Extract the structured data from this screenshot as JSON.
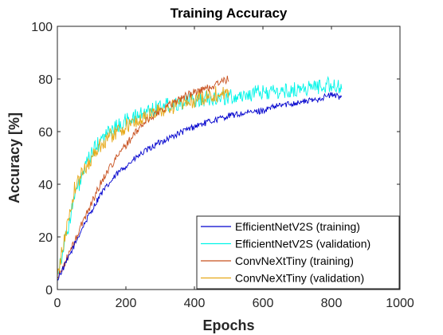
{
  "chart_data": {
    "type": "line",
    "title": "Training Accuracy",
    "xlabel": "Epochs",
    "ylabel": "Accuracy [%]",
    "xlim": [
      0,
      1000
    ],
    "ylim": [
      0,
      100
    ],
    "xticks": [
      0,
      200,
      400,
      600,
      800,
      1000
    ],
    "yticks": [
      0,
      20,
      40,
      60,
      80,
      100
    ],
    "grid": false,
    "legend_position": "bottom-right",
    "series": [
      {
        "name": "EfficientNetV2S (training)",
        "color": "#0000cd",
        "noise": 1.2,
        "x": [
          0,
          25,
          50,
          75,
          100,
          125,
          150,
          175,
          200,
          250,
          300,
          350,
          400,
          450,
          500,
          550,
          600,
          650,
          700,
          750,
          800,
          830
        ],
        "y": [
          4,
          10,
          17,
          24,
          30,
          36,
          40,
          44,
          47,
          52,
          56,
          59,
          62,
          64,
          66,
          67,
          68,
          70,
          71,
          72,
          74,
          73
        ]
      },
      {
        "name": "EfficientNetV2S (validation)",
        "color": "#00f5e8",
        "noise": 3.0,
        "x": [
          0,
          25,
          50,
          75,
          100,
          125,
          150,
          200,
          250,
          300,
          350,
          400,
          450,
          500,
          550,
          600,
          650,
          700,
          750,
          800,
          830
        ],
        "y": [
          6,
          20,
          35,
          44,
          52,
          56,
          60,
          64,
          67,
          70,
          71,
          72,
          73,
          73,
          74,
          75,
          75,
          76,
          77,
          78,
          76
        ]
      },
      {
        "name": "ConvNeXtTiny (training)",
        "color": "#c8501e",
        "noise": 1.5,
        "x": [
          0,
          25,
          50,
          75,
          100,
          125,
          150,
          200,
          250,
          300,
          350,
          400,
          450,
          480,
          500
        ],
        "y": [
          4,
          11,
          18,
          26,
          33,
          40,
          46,
          55,
          63,
          68,
          72,
          75,
          77,
          79,
          80
        ]
      },
      {
        "name": "ConvNeXtTiny (validation)",
        "color": "#e6a817",
        "noise": 3.0,
        "x": [
          0,
          25,
          50,
          75,
          100,
          125,
          150,
          200,
          250,
          300,
          350,
          400,
          450,
          500
        ],
        "y": [
          5,
          22,
          38,
          45,
          50,
          55,
          58,
          62,
          65,
          68,
          70,
          72,
          74,
          75
        ]
      }
    ]
  }
}
